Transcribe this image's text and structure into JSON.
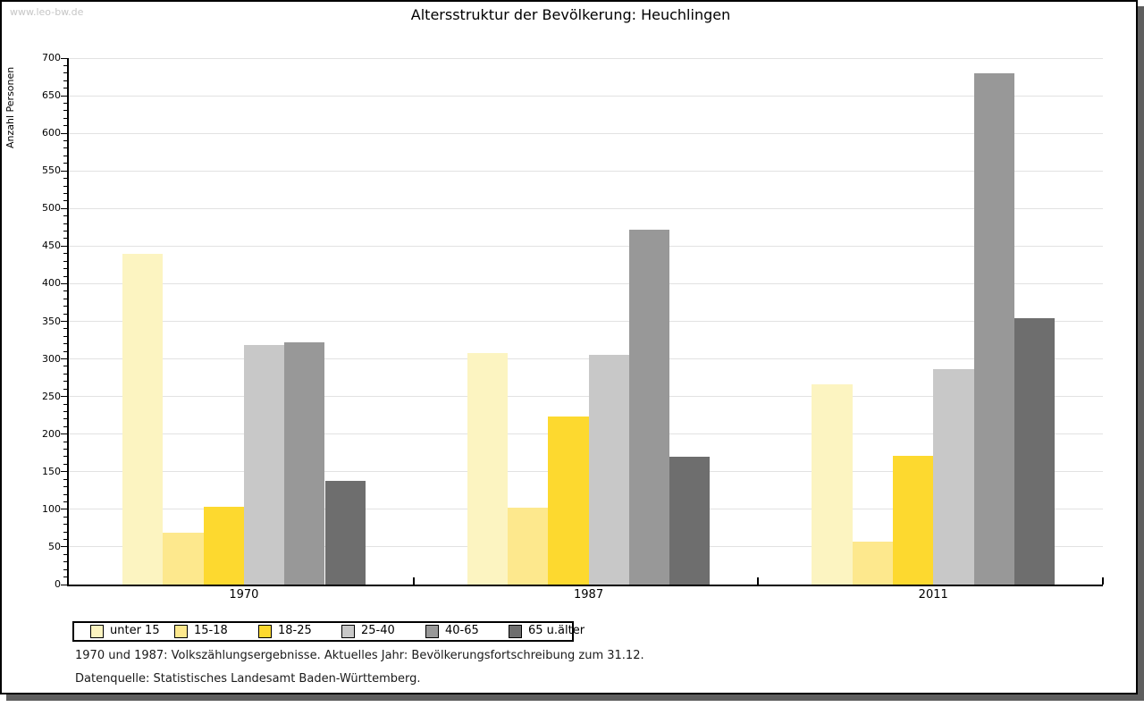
{
  "watermark": "www.leo-bw.de",
  "colors": {
    "shadow": "#5E5E5E",
    "gridline": "#E2E2E2",
    "axis": "#000000",
    "watermark_text": "#C6C6C6"
  },
  "chart_data": {
    "type": "bar",
    "title": "Altersstruktur der Bevölkerung: Heuchlingen",
    "xlabel": "",
    "ylabel": "Anzahl Personen",
    "categories": [
      "1970",
      "1987",
      "2011"
    ],
    "series": [
      {
        "name": "unter 15",
        "color": "#FCF4C1",
        "values": [
          440,
          308,
          266
        ]
      },
      {
        "name": "15-18",
        "color": "#FDE88D",
        "values": [
          69,
          102,
          57
        ]
      },
      {
        "name": "18-25",
        "color": "#FDD92F",
        "values": [
          104,
          224,
          171
        ]
      },
      {
        "name": "25-40",
        "color": "#C8C8C8",
        "values": [
          318,
          306,
          287
        ]
      },
      {
        "name": "40-65",
        "color": "#989898",
        "values": [
          322,
          472,
          680
        ]
      },
      {
        "name": "65 u.älter",
        "color": "#6E6E6E",
        "values": [
          138,
          170,
          354
        ]
      }
    ],
    "ylim": [
      0,
      700
    ],
    "ytick_step": 50,
    "minor_tick_step": 10,
    "grid": true,
    "legend_position": "bottom"
  },
  "footnotes": [
    "1970 und 1987: Volkszählungsergebnisse. Aktuelles Jahr: Bevölkerungsfortschreibung zum 31.12.",
    "Datenquelle: Statistisches Landesamt Baden-Württemberg."
  ]
}
